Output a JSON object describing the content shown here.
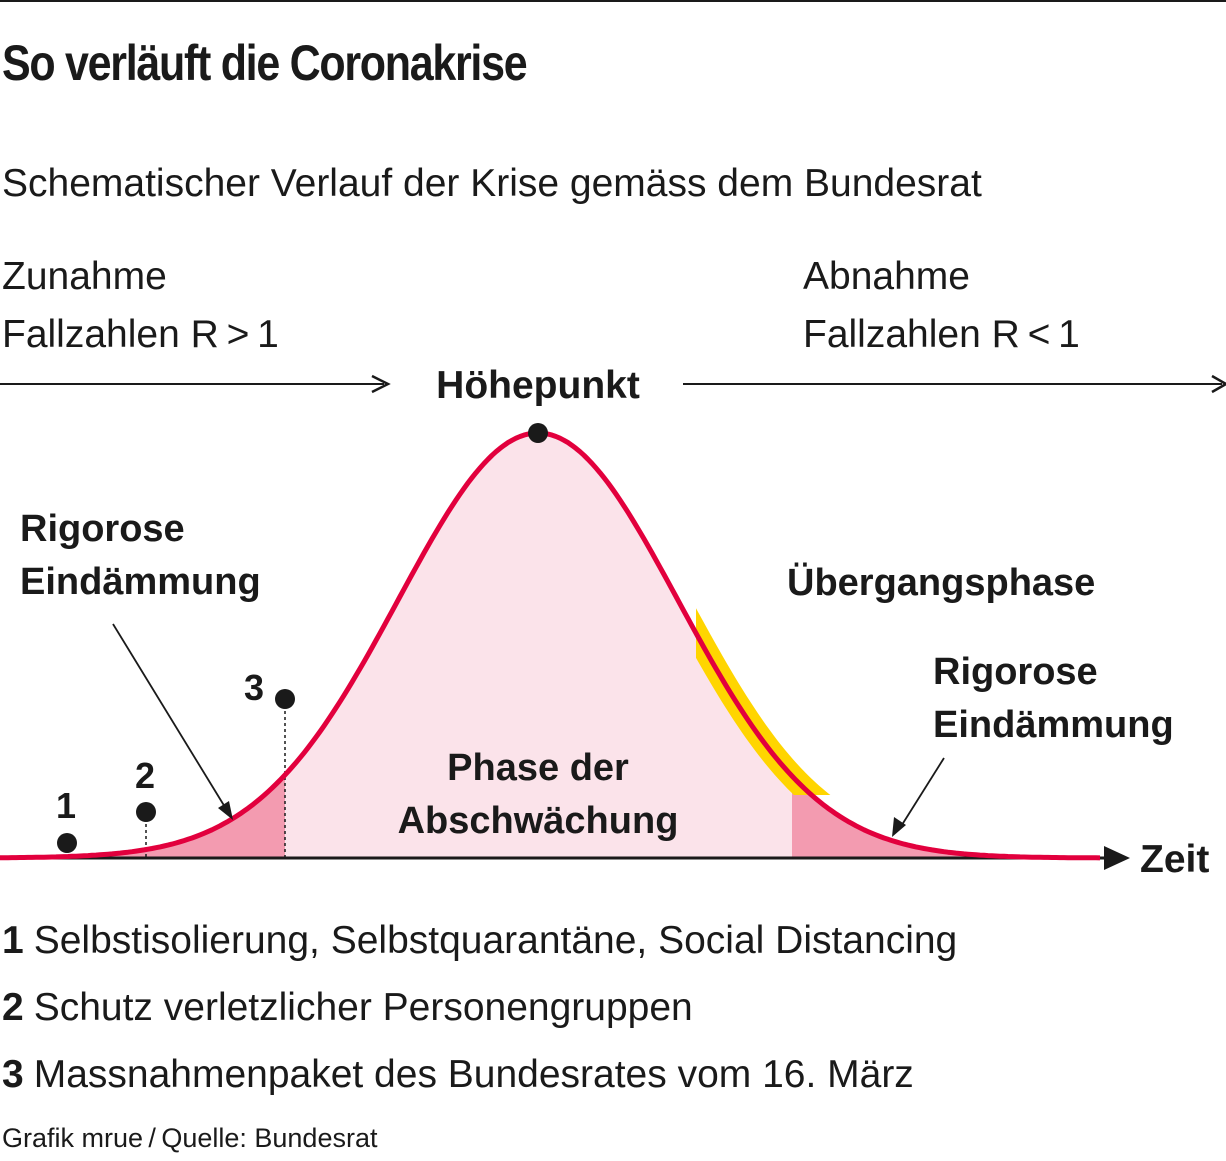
{
  "title": "So verläuft die Coronakrise",
  "subtitle": "Schematischer Verlauf der Krise gemäss dem Bundesrat",
  "phases": {
    "increase": {
      "line1": "Zunahme",
      "line2": "Fallzahlen R > 1"
    },
    "decrease": {
      "line1": "Abnahme",
      "line2": "Fallzahlen R < 1"
    },
    "peak": "Höhepunkt"
  },
  "diagram": {
    "left_region": {
      "line1": "Rigorose",
      "line2": "Eindämmung"
    },
    "middle_region": {
      "line1": "Phase der",
      "line2": "Abschwächung"
    },
    "transition": "Übergangsphase",
    "right_region": {
      "line1": "Rigorose",
      "line2": "Eindämmung"
    },
    "time_axis": "Zeit",
    "markers": [
      "1",
      "2",
      "3"
    ]
  },
  "legend": [
    {
      "number": "1",
      "text": "Selbstisolierung, Selbstquarantäne, Social Distancing"
    },
    {
      "number": "2",
      "text": "Schutz verletzlicher Personengruppen"
    },
    {
      "number": "3",
      "text": "Massnahmenpaket des Bundesrates vom 16. März"
    }
  ],
  "source": "Grafik mrue / Quelle: Bundesrat",
  "colors": {
    "curve": "#e2003d",
    "fill_light": "#fbe3ea",
    "fill_dark": "#f39bb0",
    "highlight": "#ffd500",
    "text": "#1a1a1a"
  }
}
